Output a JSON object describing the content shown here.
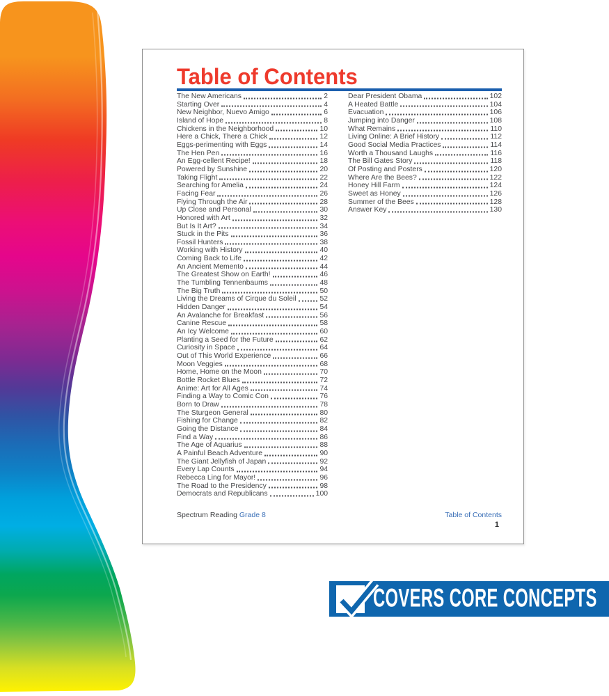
{
  "page": {
    "title": "Table of Contents",
    "footer": {
      "brand": "Spectrum Reading",
      "grade": "Grade 8",
      "section": "Table of Contents",
      "page_number": "1"
    }
  },
  "toc": {
    "left_column": [
      {
        "title": "The New Americans",
        "page": "2"
      },
      {
        "title": "Starting Over",
        "page": "4"
      },
      {
        "title": "New Neighbor, Nuevo Amigo",
        "page": "6"
      },
      {
        "title": "Island of Hope",
        "page": "8"
      },
      {
        "title": "Chickens in the Neighborhood",
        "page": "10"
      },
      {
        "title": "Here a Chick, There a Chick",
        "page": "12"
      },
      {
        "title": "Eggs-perimenting with Eggs",
        "page": "14"
      },
      {
        "title": "The Hen Pen",
        "page": "16"
      },
      {
        "title": "An Egg-cellent Recipe!",
        "page": "18"
      },
      {
        "title": "Powered by Sunshine",
        "page": "20"
      },
      {
        "title": "Taking Flight",
        "page": "22"
      },
      {
        "title": "Searching for Amelia",
        "page": "24"
      },
      {
        "title": "Facing Fear",
        "page": "26"
      },
      {
        "title": "Flying Through the Air",
        "page": "28"
      },
      {
        "title": "Up Close and Personal",
        "page": "30"
      },
      {
        "title": "Honored with Art",
        "page": "32"
      },
      {
        "title": "But Is It Art?",
        "page": "34"
      },
      {
        "title": "Stuck in the Pits",
        "page": "36"
      },
      {
        "title": "Fossil Hunters",
        "page": "38"
      },
      {
        "title": "Working with History",
        "page": "40"
      },
      {
        "title": "Coming Back to Life",
        "page": "42"
      },
      {
        "title": "An Ancient Memento",
        "page": "44"
      },
      {
        "title": "The Greatest Show on Earth!",
        "page": "46"
      },
      {
        "title": "The Tumbling Tennenbaums",
        "page": "48"
      },
      {
        "title": "The Big Truth",
        "page": "50"
      },
      {
        "title": "Living the Dreams of Cirque du Soleil",
        "page": "52"
      },
      {
        "title": "Hidden Danger",
        "page": "54"
      },
      {
        "title": "An Avalanche for Breakfast",
        "page": "56"
      },
      {
        "title": "Canine Rescue",
        "page": "58"
      },
      {
        "title": "An Icy Welcome",
        "page": "60"
      },
      {
        "title": "Planting a Seed for the Future",
        "page": "62"
      },
      {
        "title": "Curiosity in Space",
        "page": "64"
      },
      {
        "title": "Out of This World Experience",
        "page": "66"
      },
      {
        "title": "Moon Veggies",
        "page": "68"
      },
      {
        "title": "Home, Home on the Moon",
        "page": "70"
      },
      {
        "title": "Bottle Rocket Blues",
        "page": "72"
      },
      {
        "title": "Anime: Art for All Ages",
        "page": "74"
      },
      {
        "title": "Finding a Way to Comic Con",
        "page": "76"
      },
      {
        "title": "Born to Draw",
        "page": "78"
      },
      {
        "title": "The Sturgeon General",
        "page": "80"
      },
      {
        "title": "Fishing for Change",
        "page": "82"
      },
      {
        "title": "Going the Distance",
        "page": "84"
      },
      {
        "title": "Find a Way",
        "page": "86"
      },
      {
        "title": "The Age of Aquarius",
        "page": "88"
      },
      {
        "title": "A Painful Beach Adventure",
        "page": "90"
      },
      {
        "title": "The Giant Jellyfish of Japan",
        "page": "92"
      },
      {
        "title": "Every Lap Counts",
        "page": "94"
      },
      {
        "title": "Rebecca Ling for Mayor!",
        "page": "96"
      },
      {
        "title": "The Road to the Presidency",
        "page": "98"
      },
      {
        "title": "Democrats and Republicans",
        "page": "100"
      }
    ],
    "right_column": [
      {
        "title": "Dear President Obama",
        "page": "102"
      },
      {
        "title": "A Heated Battle",
        "page": "104"
      },
      {
        "title": "Evacuation",
        "page": "106"
      },
      {
        "title": "Jumping into Danger",
        "page": "108"
      },
      {
        "title": "What Remains",
        "page": "110"
      },
      {
        "title": "Living Online: A Brief History",
        "page": "112"
      },
      {
        "title": "Good Social Media Practices",
        "page": "114"
      },
      {
        "title": "Worth a Thousand Laughs",
        "page": "116"
      },
      {
        "title": "The Bill Gates Story",
        "page": "118"
      },
      {
        "title": "Of Posting and Posters",
        "page": "120"
      },
      {
        "title": "Where Are the Bees?",
        "page": "122"
      },
      {
        "title": "Honey Hill Farm",
        "page": "124"
      },
      {
        "title": "Sweet as Honey",
        "page": "126"
      },
      {
        "title": "Summer of the Bees",
        "page": "128"
      },
      {
        "title": "Answer Key",
        "page": "130"
      }
    ]
  },
  "banner": {
    "text": "COVERS CORE CONCEPTS",
    "background": "#0F66AE",
    "icon": "checkmark-icon"
  },
  "colors": {
    "title_red": "#EE3A2C",
    "rule_blue": "#1B5FAE",
    "footer_blue": "#3A6FB7",
    "body_text": "#47484A"
  },
  "swoosh": {
    "description": "rainbow gradient swoosh",
    "gradient_top_to_bottom": [
      "#F7941D",
      "#F36F21",
      "#EF3B24",
      "#ED1F4A",
      "#EC0E76",
      "#E5068B",
      "#CC128E",
      "#A62390",
      "#7C2B92",
      "#533997",
      "#3053A4",
      "#1C6BB6",
      "#0E81C6",
      "#00A0DC",
      "#00AEE4",
      "#00ACC1",
      "#00A669",
      "#00A651",
      "#33AF4A",
      "#8DC63F",
      "#D7DF23",
      "#FFF200"
    ]
  }
}
